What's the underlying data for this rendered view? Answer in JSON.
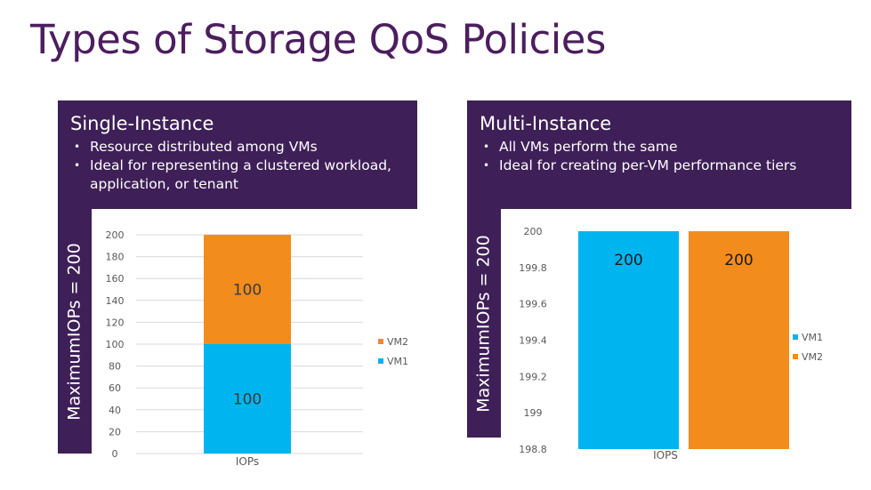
{
  "slide": {
    "title": "Types of Storage QoS Policies"
  },
  "single_instance": {
    "heading": "Single-Instance",
    "bullets": [
      "Resource distributed among VMs",
      "Ideal for representing a clustered workload, application, or tenant"
    ],
    "axis_label": "MaximumIOPs = 200"
  },
  "multi_instance": {
    "heading": "Multi-Instance",
    "bullets": [
      "All VMs perform the same",
      "Ideal for creating per-VM performance tiers"
    ],
    "axis_label": "MaximumIOPs = 200"
  },
  "colors": {
    "panel_bg": "#3e1f57",
    "title": "#4b1e5e",
    "vm1": "#00b4f0",
    "vm2": "#f28c1d",
    "grid": "#d9d9d9",
    "tick_text": "#595959"
  },
  "chart_data": [
    {
      "type": "bar",
      "stacked": true,
      "categories": [
        "IOPs"
      ],
      "series": [
        {
          "name": "VM1",
          "values": [
            100
          ],
          "color": "#00b4f0",
          "data_labels": [
            "100"
          ]
        },
        {
          "name": "VM2",
          "values": [
            100
          ],
          "color": "#f28c1d",
          "data_labels": [
            "100"
          ]
        }
      ],
      "ylim": [
        0,
        200
      ],
      "yticks": [
        0,
        20,
        40,
        60,
        80,
        100,
        120,
        140,
        160,
        180,
        200
      ],
      "ytick_labels": [
        "0",
        "20",
        "40",
        "60",
        "80",
        "100",
        "120",
        "140",
        "160",
        "180",
        "200"
      ],
      "grid": true,
      "legend": {
        "placement": "right",
        "entries": [
          "VM2",
          "VM1"
        ]
      }
    },
    {
      "type": "bar",
      "stacked": false,
      "categories": [
        "IOPS"
      ],
      "series": [
        {
          "name": "VM1",
          "values": [
            200
          ],
          "color": "#00b4f0",
          "data_labels": [
            "200"
          ]
        },
        {
          "name": "VM2",
          "values": [
            200
          ],
          "color": "#f28c1d",
          "data_labels": [
            "200"
          ]
        }
      ],
      "ylim": [
        198.8,
        200
      ],
      "yticks": [
        198.8,
        199,
        199.2,
        199.4,
        199.6,
        199.8,
        200
      ],
      "ytick_labels": [
        "198.8",
        "199",
        "199.2",
        "199.4",
        "199.6",
        "199.8",
        "200"
      ],
      "grid": false,
      "legend": {
        "placement": "right",
        "entries": [
          "VM1",
          "VM2"
        ]
      }
    }
  ]
}
